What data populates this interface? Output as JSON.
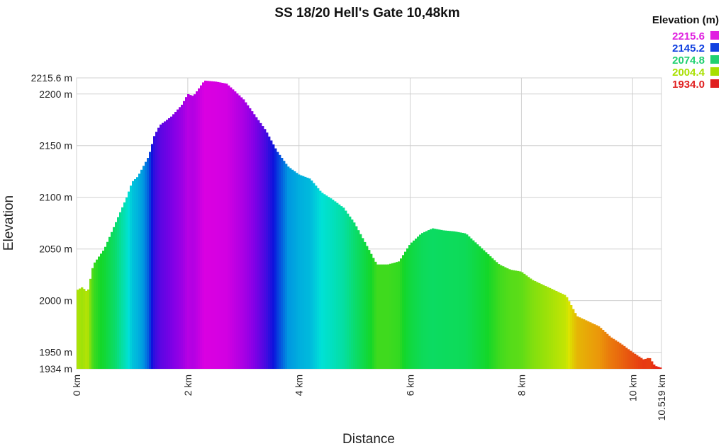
{
  "chart_data": {
    "type": "area",
    "title": "SS 18/20 Hell's Gate 10,48km",
    "xlabel": "Distance",
    "ylabel": "Elevation",
    "xlim": [
      0,
      10.519
    ],
    "ylim": [
      1934,
      2215.6
    ],
    "x_ticks": [
      {
        "v": 0,
        "label": "0 km"
      },
      {
        "v": 2,
        "label": "2 km"
      },
      {
        "v": 4,
        "label": "4 km"
      },
      {
        "v": 6,
        "label": "6 km"
      },
      {
        "v": 8,
        "label": "8 km"
      },
      {
        "v": 10,
        "label": "10 km"
      },
      {
        "v": 10.519,
        "label": "10.519 km"
      }
    ],
    "y_ticks": [
      {
        "v": 1934,
        "label": "1934 m"
      },
      {
        "v": 1950,
        "label": "1950 m"
      },
      {
        "v": 2000,
        "label": "2000 m"
      },
      {
        "v": 2050,
        "label": "2050 m"
      },
      {
        "v": 2100,
        "label": "2100 m"
      },
      {
        "v": 2150,
        "label": "2150 m"
      },
      {
        "v": 2200,
        "label": "2200 m"
      },
      {
        "v": 2215.6,
        "label": "2215.6 m"
      }
    ],
    "grid": true,
    "legend": {
      "title": "Elevation (m)",
      "placement": "top-right",
      "entries": [
        {
          "label": "2215.6",
          "color": "#e020e0"
        },
        {
          "label": "2145.2",
          "color": "#1040e0"
        },
        {
          "label": "2074.8",
          "color": "#20d070"
        },
        {
          "label": "2004.4",
          "color": "#a8e000"
        },
        {
          "label": "1934.0",
          "color": "#e02020"
        }
      ]
    },
    "x": [
      0,
      0.1,
      0.2,
      0.3,
      0.5,
      0.7,
      0.9,
      1.0,
      1.1,
      1.3,
      1.4,
      1.5,
      1.7,
      1.9,
      2.0,
      2.1,
      2.3,
      2.5,
      2.7,
      3.0,
      3.2,
      3.4,
      3.6,
      3.8,
      4.0,
      4.2,
      4.4,
      4.6,
      4.8,
      5.0,
      5.2,
      5.4,
      5.6,
      5.8,
      6.0,
      6.2,
      6.4,
      6.6,
      6.8,
      7.0,
      7.2,
      7.4,
      7.6,
      7.8,
      8.0,
      8.2,
      8.4,
      8.6,
      8.8,
      9.0,
      9.2,
      9.4,
      9.6,
      9.8,
      10.0,
      10.2,
      10.3,
      10.4,
      10.519
    ],
    "y": [
      2010,
      2013,
      2008,
      2035,
      2050,
      2075,
      2100,
      2115,
      2120,
      2140,
      2160,
      2170,
      2178,
      2190,
      2200,
      2198,
      2213,
      2212,
      2210,
      2195,
      2180,
      2165,
      2145,
      2130,
      2122,
      2118,
      2105,
      2098,
      2090,
      2075,
      2055,
      2035,
      2035,
      2038,
      2055,
      2065,
      2070,
      2068,
      2067,
      2065,
      2055,
      2045,
      2035,
      2030,
      2028,
      2020,
      2015,
      2010,
      2005,
      1985,
      1980,
      1975,
      1965,
      1958,
      1950,
      1943,
      1945,
      1937,
      1935
    ]
  }
}
